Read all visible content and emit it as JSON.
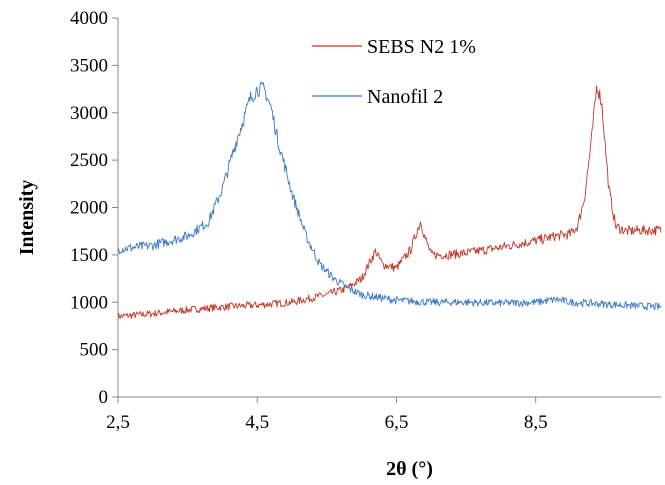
{
  "chart_data": {
    "type": "line",
    "title": "",
    "xlabel": "2θ (°)",
    "ylabel": "Intensity",
    "xlim": [
      2.5,
      10.3
    ],
    "ylim": [
      0,
      4000
    ],
    "x_ticks": [
      2.5,
      4.5,
      6.5,
      8.5
    ],
    "x_tick_labels": [
      "2,5",
      "4,5",
      "6,5",
      "8,5"
    ],
    "y_ticks": [
      0,
      500,
      1000,
      1500,
      2000,
      2500,
      3000,
      3500,
      4000
    ],
    "y_tick_labels": [
      "0",
      "500",
      "1000",
      "1500",
      "2000",
      "2500",
      "3000",
      "3500",
      "4000"
    ],
    "grid": false,
    "legend_position": "top-right",
    "series": [
      {
        "name": "SEBS N2 1%",
        "color": "#c0392b",
        "x": [
          2.5,
          3.0,
          3.5,
          4.0,
          4.5,
          5.0,
          5.5,
          5.8,
          6.0,
          6.1,
          6.2,
          6.3,
          6.5,
          6.7,
          6.85,
          6.9,
          7.0,
          7.2,
          7.5,
          8.0,
          8.5,
          8.8,
          9.0,
          9.1,
          9.2,
          9.3,
          9.38,
          9.45,
          9.55,
          9.65,
          9.8,
          10.0,
          10.3
        ],
        "y": [
          850,
          880,
          920,
          950,
          970,
          1000,
          1080,
          1150,
          1250,
          1400,
          1540,
          1400,
          1360,
          1550,
          1860,
          1700,
          1500,
          1500,
          1520,
          1580,
          1650,
          1700,
          1720,
          1800,
          2100,
          2700,
          3300,
          3100,
          2200,
          1800,
          1750,
          1760,
          1760
        ]
      },
      {
        "name": "Nanofil 2",
        "color": "#3a78c9",
        "x": [
          2.5,
          3.0,
          3.5,
          3.8,
          4.0,
          4.2,
          4.4,
          4.5,
          4.6,
          4.7,
          4.8,
          5.0,
          5.2,
          5.4,
          5.6,
          5.8,
          6.0,
          6.5,
          7.0,
          7.5,
          8.0,
          8.5,
          8.8,
          9.0,
          9.5,
          10.0,
          10.3
        ],
        "y": [
          1560,
          1600,
          1700,
          1850,
          2200,
          2700,
          3150,
          3250,
          3250,
          3050,
          2700,
          2150,
          1700,
          1400,
          1250,
          1150,
          1080,
          1020,
          1000,
          1000,
          990,
          1000,
          1030,
          1000,
          980,
          960,
          950
        ]
      }
    ]
  }
}
